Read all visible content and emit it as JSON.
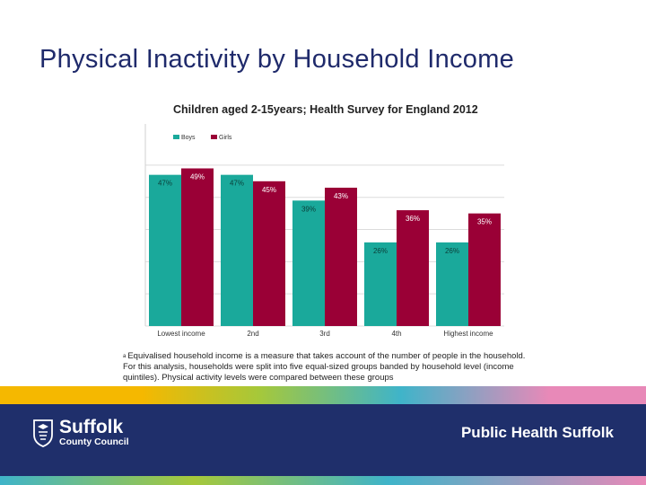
{
  "slide": {
    "title": "Physical Inactivity by Household Income",
    "footnote_marker": "a",
    "footnote": "Equivalised household income is a measure that takes account of the number of people in the household.  For this analysis, households were split into five equal-sized groups banded by household level (income quintiles). Physical activity levels were compared between these groups"
  },
  "footer": {
    "logo_name": "Suffolk",
    "logo_sub": "County Council",
    "org_name": "Public Health Suffolk",
    "crest_icon": "suffolk-crest-icon",
    "colors": {
      "band": "#1f2f6b",
      "stripe_top": [
        "#f5b800",
        "#a6c83a",
        "#3fb4c9",
        "#e889b8"
      ]
    }
  },
  "chart_data": {
    "type": "bar",
    "title": "Children aged 2-15years; Health Survey for England 2012",
    "categories": [
      "Lowest income",
      "2nd",
      "3rd",
      "4th",
      "Highest income"
    ],
    "series": [
      {
        "name": "Boys",
        "color": "#1aa99b",
        "values": [
          47,
          47,
          39,
          26,
          26
        ],
        "labels": [
          "47%",
          "47%",
          "39%",
          "26%",
          "26%"
        ]
      },
      {
        "name": "Girls",
        "color": "#9a0036",
        "values": [
          49,
          45,
          43,
          36,
          35
        ],
        "labels": [
          "49%",
          "45%",
          "43%",
          "36%",
          "35%"
        ]
      }
    ],
    "ylim": [
      0,
      55
    ],
    "grid": true,
    "legend": "top-left"
  }
}
